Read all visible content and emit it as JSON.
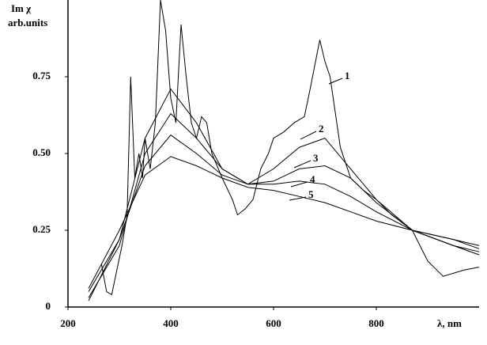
{
  "chart_data": {
    "type": "line",
    "y_label_line1": "Im χ",
    "y_label_line2": "arb.units",
    "x_label": "λ, nm",
    "xlim": [
      200,
      1000
    ],
    "ylim": [
      0,
      1
    ],
    "xticks": [
      200,
      400,
      600,
      800
    ],
    "yticks": [
      0,
      0.25,
      {
        "value": 0.5,
        "label": "0.50"
      },
      0.75
    ],
    "color": "#000000",
    "series": [
      {
        "name": "1",
        "x": [
          265,
          275,
          285,
          295,
          305,
          315,
          322,
          330,
          338,
          345,
          350,
          360,
          370,
          380,
          390,
          400,
          410,
          420,
          430,
          440,
          450,
          460,
          470,
          480,
          500,
          520,
          530,
          545,
          560,
          575,
          590,
          600,
          620,
          640,
          660,
          670,
          690,
          700,
          710,
          730,
          750,
          775,
          800,
          830,
          870,
          900,
          930,
          970,
          1000
        ],
        "values": [
          0.14,
          0.05,
          0.04,
          0.12,
          0.2,
          0.3,
          0.75,
          0.42,
          0.5,
          0.42,
          0.55,
          0.45,
          0.6,
          1.0,
          0.9,
          0.68,
          0.6,
          0.92,
          0.75,
          0.6,
          0.55,
          0.62,
          0.6,
          0.5,
          0.42,
          0.35,
          0.3,
          0.32,
          0.35,
          0.45,
          0.5,
          0.55,
          0.57,
          0.6,
          0.62,
          0.7,
          0.87,
          0.8,
          0.75,
          0.52,
          0.42,
          0.38,
          0.35,
          0.3,
          0.25,
          0.15,
          0.1,
          0.12,
          0.13
        ]
      },
      {
        "name": "2",
        "x": [
          240,
          300,
          350,
          400,
          450,
          500,
          550,
          600,
          650,
          700,
          750,
          800,
          870,
          950,
          1000
        ],
        "values": [
          0.02,
          0.22,
          0.55,
          0.71,
          0.6,
          0.45,
          0.4,
          0.45,
          0.52,
          0.55,
          0.45,
          0.35,
          0.25,
          0.2,
          0.17
        ]
      },
      {
        "name": "3",
        "x": [
          240,
          300,
          350,
          400,
          450,
          500,
          550,
          600,
          650,
          700,
          750,
          800,
          870,
          950,
          1000
        ],
        "values": [
          0.03,
          0.2,
          0.5,
          0.63,
          0.55,
          0.45,
          0.4,
          0.41,
          0.45,
          0.46,
          0.42,
          0.34,
          0.25,
          0.2,
          0.18
        ]
      },
      {
        "name": "4",
        "x": [
          240,
          300,
          350,
          400,
          450,
          500,
          550,
          600,
          650,
          700,
          750,
          800,
          870,
          950,
          1000
        ],
        "values": [
          0.05,
          0.22,
          0.46,
          0.56,
          0.5,
          0.43,
          0.4,
          0.4,
          0.41,
          0.4,
          0.36,
          0.31,
          0.25,
          0.22,
          0.2
        ]
      },
      {
        "name": "5",
        "x": [
          240,
          300,
          350,
          400,
          450,
          500,
          550,
          600,
          650,
          700,
          750,
          800,
          870,
          950,
          1000
        ],
        "values": [
          0.06,
          0.25,
          0.43,
          0.49,
          0.46,
          0.42,
          0.39,
          0.38,
          0.36,
          0.34,
          0.31,
          0.28,
          0.25,
          0.22,
          0.19
        ]
      }
    ]
  }
}
